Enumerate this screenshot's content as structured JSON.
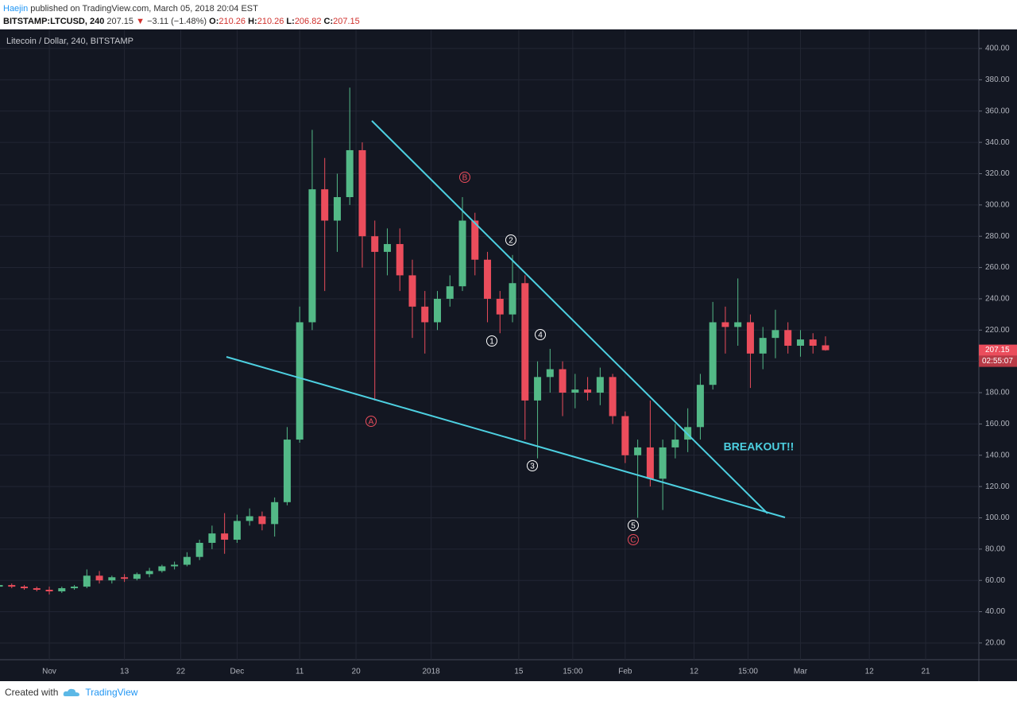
{
  "header": {
    "author": "Haejin",
    "published": "published on TradingView.com, March 05, 2018 20:04 EST",
    "symbol": "BITSTAMP:LTCUSD, 240",
    "last": "207.15",
    "arrow": "▼",
    "change": "−3.11 (−1.48%)",
    "ohlc": [
      {
        "label": "O:",
        "value": "210.26"
      },
      {
        "label": "H:",
        "value": "210.26"
      },
      {
        "label": "L:",
        "value": "206.82"
      },
      {
        "label": "C:",
        "value": "207.15"
      }
    ]
  },
  "chart_data": {
    "type": "candlestick",
    "title": "Litecoin / Dollar, 240, BITSTAMP",
    "up_color": "#53b987",
    "down_color": "#eb4d5c",
    "x": [
      "2017-10-24",
      "2017-10-26",
      "2017-10-28",
      "2017-10-30",
      "2017-11-01",
      "2017-11-03",
      "2017-11-05",
      "2017-11-07",
      "2017-11-09",
      "2017-11-11",
      "2017-11-13",
      "2017-11-15",
      "2017-11-17",
      "2017-11-19",
      "2017-11-21",
      "2017-11-23",
      "2017-11-25",
      "2017-11-27",
      "2017-11-29",
      "2017-12-01",
      "2017-12-03",
      "2017-12-05",
      "2017-12-07",
      "2017-12-09",
      "2017-12-11",
      "2017-12-13",
      "2017-12-15",
      "2017-12-17",
      "2017-12-19",
      "2017-12-21",
      "2017-12-23",
      "2017-12-25",
      "2017-12-27",
      "2017-12-29",
      "2017-12-31",
      "2018-01-02",
      "2018-01-04",
      "2018-01-06",
      "2018-01-08",
      "2018-01-10",
      "2018-01-12",
      "2018-01-14",
      "2018-01-16",
      "2018-01-18",
      "2018-01-20",
      "2018-01-22",
      "2018-01-24",
      "2018-01-26",
      "2018-01-28",
      "2018-01-30",
      "2018-02-01",
      "2018-02-03",
      "2018-02-05",
      "2018-02-07",
      "2018-02-09",
      "2018-02-11",
      "2018-02-13",
      "2018-02-15",
      "2018-02-17",
      "2018-02-19",
      "2018-02-21",
      "2018-02-23",
      "2018-02-25",
      "2018-02-27",
      "2018-03-01",
      "2018-03-03",
      "2018-03-05"
    ],
    "open": [
      56,
      57,
      56,
      55,
      54,
      53,
      55,
      56,
      63,
      60,
      62,
      61,
      64,
      66,
      69,
      70,
      75,
      84,
      90,
      86,
      98,
      101,
      96,
      110,
      150,
      225,
      310,
      290,
      305,
      335,
      280,
      270,
      275,
      255,
      235,
      225,
      240,
      248,
      290,
      265,
      240,
      230,
      250,
      175,
      190,
      195,
      180,
      182,
      180,
      190,
      165,
      140,
      145,
      125,
      145,
      150,
      158,
      185,
      225,
      222,
      225,
      205,
      215,
      220,
      210,
      214,
      210.26
    ],
    "high": [
      58,
      58,
      57,
      56,
      56,
      56,
      57,
      67,
      66,
      63,
      64,
      65,
      68,
      70,
      72,
      78,
      86,
      95,
      103,
      102,
      106,
      104,
      113,
      158,
      235,
      348,
      330,
      320,
      375,
      340,
      290,
      285,
      285,
      265,
      245,
      245,
      255,
      305,
      295,
      270,
      245,
      268,
      255,
      200,
      208,
      200,
      192,
      190,
      196,
      192,
      168,
      150,
      175,
      150,
      160,
      170,
      192,
      238,
      235,
      253,
      230,
      222,
      233,
      225,
      220,
      218,
      216
    ],
    "low": [
      54,
      55,
      54,
      53,
      51,
      52,
      54,
      55,
      58,
      58,
      59,
      60,
      62,
      65,
      67,
      69,
      73,
      80,
      77,
      84,
      95,
      92,
      88,
      108,
      148,
      220,
      245,
      270,
      300,
      260,
      175,
      255,
      245,
      215,
      205,
      220,
      235,
      245,
      255,
      225,
      218,
      225,
      150,
      138,
      180,
      165,
      170,
      175,
      172,
      160,
      135,
      100,
      120,
      105,
      138,
      142,
      150,
      182,
      205,
      210,
      183,
      195,
      202,
      205,
      203,
      205,
      206.82
    ],
    "close": [
      57,
      56,
      55,
      54,
      53,
      55,
      56,
      63,
      60,
      62,
      61,
      64,
      66,
      69,
      70,
      75,
      84,
      90,
      86,
      98,
      101,
      96,
      110,
      150,
      225,
      310,
      290,
      305,
      335,
      280,
      270,
      275,
      255,
      235,
      225,
      240,
      248,
      290,
      265,
      240,
      230,
      250,
      175,
      190,
      195,
      180,
      182,
      180,
      190,
      165,
      140,
      145,
      125,
      145,
      150,
      158,
      185,
      225,
      222,
      225,
      205,
      215,
      220,
      210,
      214,
      210,
      207.15
    ],
    "xlim": [
      "2017-10-24T03:00",
      "2018-03-29T12:00"
    ],
    "xticks": [
      {
        "value": "2017-11-01",
        "label": "Nov"
      },
      {
        "value": "2017-11-13",
        "label": "13"
      },
      {
        "value": "2017-11-22",
        "label": "22"
      },
      {
        "value": "2017-12-01",
        "label": "Dec"
      },
      {
        "value": "2017-12-11",
        "label": "11"
      },
      {
        "value": "2017-12-20",
        "label": "20"
      },
      {
        "value": "2018-01-01",
        "label": "2018"
      },
      {
        "value": "2018-01-15",
        "label": "15"
      },
      {
        "value": "2018-01-23T15:00",
        "label": "15:00"
      },
      {
        "value": "2018-02-01",
        "label": "Feb"
      },
      {
        "value": "2018-02-12",
        "label": "12"
      },
      {
        "value": "2018-02-20T15:00",
        "label": "15:00"
      },
      {
        "value": "2018-03-01",
        "label": "Mar"
      },
      {
        "value": "2018-03-12",
        "label": "12"
      },
      {
        "value": "2018-03-21",
        "label": "21"
      }
    ],
    "ylim": [
      9.3,
      411.7
    ],
    "yticks": [
      {
        "value": 20,
        "label": "20.00"
      },
      {
        "value": 40,
        "label": "40.00"
      },
      {
        "value": 60,
        "label": "60.00"
      },
      {
        "value": 80,
        "label": "80.00"
      },
      {
        "value": 100,
        "label": "100.00"
      },
      {
        "value": 120,
        "label": "120.00"
      },
      {
        "value": 140,
        "label": "140.00"
      },
      {
        "value": 160,
        "label": "160.00"
      },
      {
        "value": 180,
        "label": "180.00"
      },
      {
        "value": 200,
        "label": "200.00"
      },
      {
        "value": 220,
        "label": "220.00"
      },
      {
        "value": 240,
        "label": "240.00"
      },
      {
        "value": 260,
        "label": "260.00"
      },
      {
        "value": 280,
        "label": "280.00"
      },
      {
        "value": 300,
        "label": "300.00"
      },
      {
        "value": 320,
        "label": "320.00"
      },
      {
        "value": 340,
        "label": "340.00"
      },
      {
        "value": 360,
        "label": "360.00"
      },
      {
        "value": 380,
        "label": "380.00"
      },
      {
        "value": 400,
        "label": "400.00"
      }
    ],
    "grid": true,
    "price_tag": 207.15,
    "countdown": "02:55:07",
    "wave_labels": [
      "A",
      "B",
      "1",
      "2",
      "3",
      "4",
      "5",
      "C"
    ],
    "annotation": "BREAKOUT!!"
  },
  "footer": {
    "created": "Created with",
    "brand": "TradingView"
  }
}
